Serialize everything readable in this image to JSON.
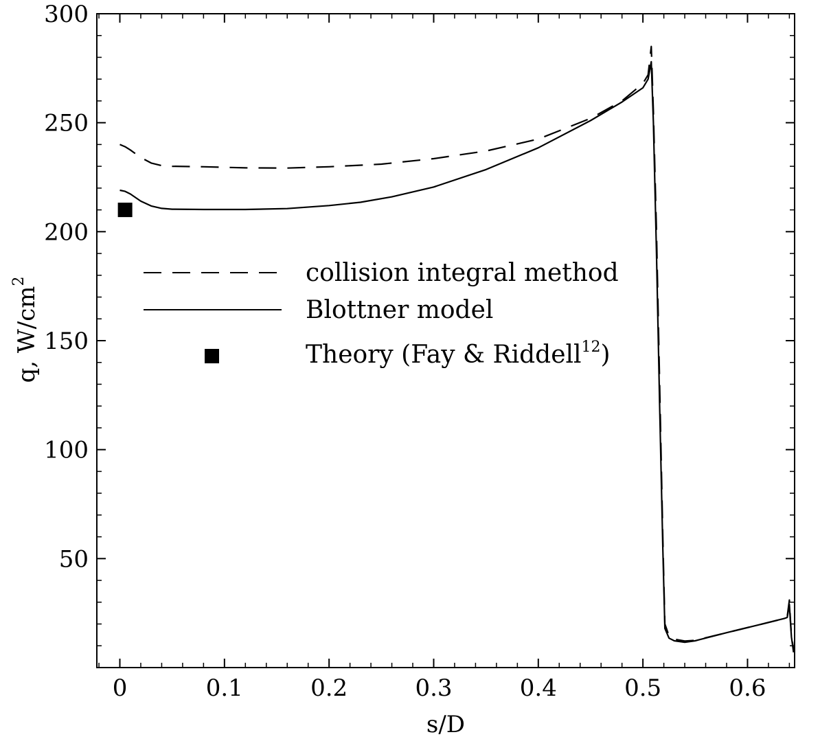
{
  "chart_data": {
    "type": "line",
    "xlabel": "s/D",
    "ylabel": "q, W/cm",
    "ylabel_sup": "2",
    "xlim": [
      -0.022,
      0.645
    ],
    "ylim": [
      0,
      300
    ],
    "x_ticks": [
      0,
      0.1,
      0.2,
      0.3,
      0.4,
      0.5,
      0.6
    ],
    "x_tick_labels": [
      "0",
      "0.1",
      "0.2",
      "0.3",
      "0.4",
      "0.5",
      "0.6"
    ],
    "y_ticks": [
      50,
      100,
      150,
      200,
      250,
      300
    ],
    "y_tick_labels": [
      "50",
      "100",
      "150",
      "200",
      "250",
      "300"
    ],
    "grid": false,
    "legend_position": "center",
    "series": [
      {
        "name": "collision integral method",
        "style": "dashed",
        "color": "#000000",
        "points": [
          [
            0.0,
            240
          ],
          [
            0.005,
            239
          ],
          [
            0.01,
            237.5
          ],
          [
            0.02,
            234
          ],
          [
            0.03,
            231.5
          ],
          [
            0.04,
            230.3
          ],
          [
            0.05,
            230
          ],
          [
            0.08,
            229.8
          ],
          [
            0.12,
            229.3
          ],
          [
            0.16,
            229.2
          ],
          [
            0.2,
            229.8
          ],
          [
            0.25,
            231
          ],
          [
            0.3,
            233.5
          ],
          [
            0.35,
            237
          ],
          [
            0.4,
            242.5
          ],
          [
            0.45,
            252
          ],
          [
            0.48,
            260
          ],
          [
            0.5,
            268
          ],
          [
            0.505,
            272
          ],
          [
            0.508,
            285
          ],
          [
            0.51,
            255
          ],
          [
            0.513,
            200
          ],
          [
            0.516,
            130
          ],
          [
            0.519,
            60
          ],
          [
            0.521,
            20
          ],
          [
            0.525,
            14.5
          ],
          [
            0.53,
            13
          ],
          [
            0.54,
            12.2
          ],
          [
            0.55,
            12.5
          ],
          [
            0.58,
            16
          ],
          [
            0.61,
            19.5
          ],
          [
            0.635,
            22.5
          ],
          [
            0.638,
            23.5
          ],
          [
            0.64,
            31
          ],
          [
            0.641,
            22
          ],
          [
            0.642,
            15
          ],
          [
            0.644,
            8
          ]
        ]
      },
      {
        "name": "Blottner model",
        "style": "solid",
        "color": "#000000",
        "points": [
          [
            0.0,
            219
          ],
          [
            0.005,
            218.5
          ],
          [
            0.01,
            217.3
          ],
          [
            0.02,
            214
          ],
          [
            0.03,
            211.8
          ],
          [
            0.04,
            210.7
          ],
          [
            0.05,
            210.3
          ],
          [
            0.08,
            210.2
          ],
          [
            0.12,
            210.2
          ],
          [
            0.16,
            210.6
          ],
          [
            0.2,
            212
          ],
          [
            0.23,
            213.5
          ],
          [
            0.26,
            216
          ],
          [
            0.3,
            220.5
          ],
          [
            0.35,
            228.5
          ],
          [
            0.4,
            238.5
          ],
          [
            0.45,
            251
          ],
          [
            0.48,
            259.5
          ],
          [
            0.5,
            266
          ],
          [
            0.505,
            270
          ],
          [
            0.508,
            278
          ],
          [
            0.51,
            250
          ],
          [
            0.513,
            190
          ],
          [
            0.516,
            120
          ],
          [
            0.519,
            55
          ],
          [
            0.521,
            18
          ],
          [
            0.525,
            13.5
          ],
          [
            0.53,
            12.3
          ],
          [
            0.54,
            11.6
          ],
          [
            0.55,
            12.3
          ],
          [
            0.58,
            16
          ],
          [
            0.61,
            19.5
          ],
          [
            0.635,
            22.5
          ],
          [
            0.638,
            23
          ],
          [
            0.64,
            29
          ],
          [
            0.641,
            21
          ],
          [
            0.642,
            14
          ],
          [
            0.644,
            7
          ]
        ]
      },
      {
        "name": "Theory (Fay & Riddell",
        "name_sup": "12",
        "name_suffix": ")",
        "style": "marker",
        "marker": "square",
        "color": "#000000",
        "points": [
          [
            0.005,
            210
          ]
        ]
      }
    ]
  }
}
